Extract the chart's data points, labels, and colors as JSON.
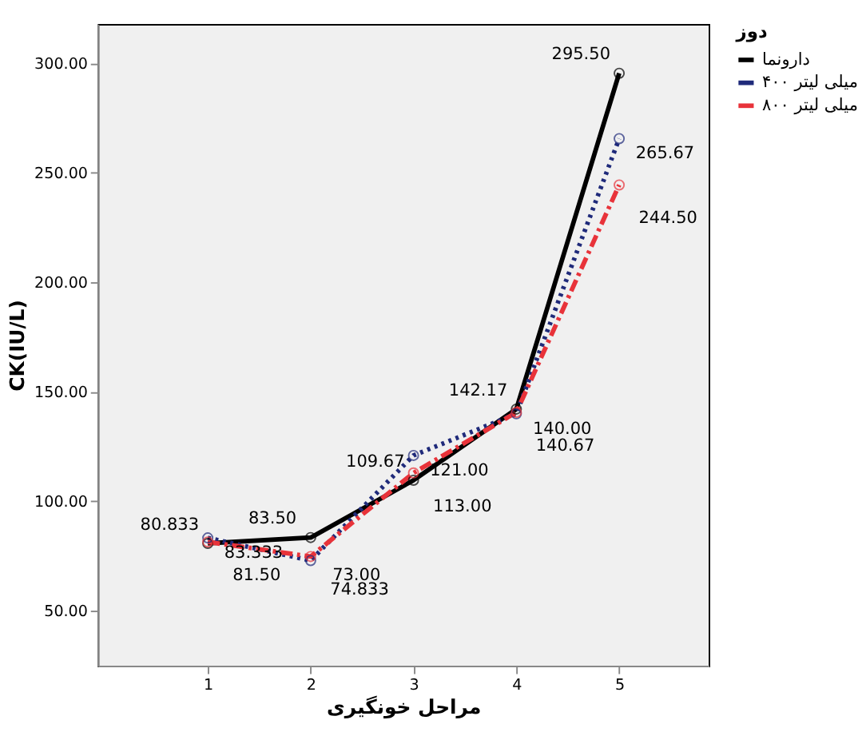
{
  "chart_data": {
    "type": "line",
    "xlabel": "مراحل خونگیری",
    "ylabel": "CK(IU/L)",
    "legend_title": "دوز",
    "legend": "top right",
    "marker": "circle",
    "grid": false,
    "x": [
      1,
      2,
      3,
      4,
      5
    ],
    "xlim": [
      -0.07,
      5.87
    ],
    "xticks": [
      1,
      2,
      3,
      4,
      5
    ],
    "ylim": [
      25,
      318
    ],
    "yticks": [
      {
        "value": 50,
        "label": "50.00"
      },
      {
        "value": 100,
        "label": "100.00"
      },
      {
        "value": 150,
        "label": "150.00"
      },
      {
        "value": 200,
        "label": "200.00"
      },
      {
        "value": 250,
        "label": "250.00"
      },
      {
        "value": 300,
        "label": "300.00"
      }
    ],
    "series": [
      {
        "name": "دارونما",
        "color": "#000000",
        "line_style": "solid",
        "values": [
          80.833,
          83.5,
          109.67,
          142.17,
          295.5
        ],
        "value_labels": [
          "80.833",
          "83.50",
          "109.67",
          "142.17",
          "295.50"
        ]
      },
      {
        "name": "۴۰۰ میلی لیتر",
        "color": "#1f2a7a",
        "line_style": "dotted",
        "values": [
          83.333,
          73.0,
          121.0,
          140.0,
          265.67
        ],
        "value_labels": [
          "83.333",
          "73.00",
          "121.00",
          "140.00",
          "265.67"
        ]
      },
      {
        "name": "۸۰۰ میلی لیتر",
        "color": "#e8333a",
        "line_style": "dashed",
        "values": [
          81.5,
          74.833,
          113.0,
          140.67,
          244.5
        ],
        "value_labels": [
          "81.50",
          "74.833",
          "113.00",
          "140.67",
          "244.50"
        ]
      }
    ]
  }
}
